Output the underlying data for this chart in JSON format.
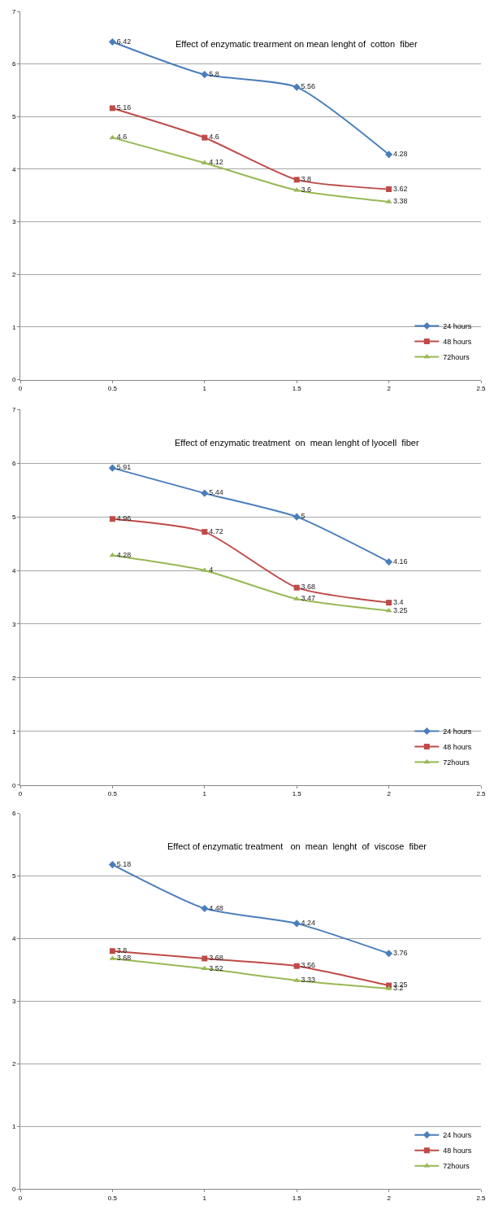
{
  "chart_data": [
    {
      "type": "line",
      "title": "Effect of enzymatic trearment on mean lenght of  cotton  fiber",
      "x": [
        0.5,
        1,
        1.5,
        2
      ],
      "xlim": [
        0,
        2.5
      ],
      "xticks": [
        0,
        0.5,
        1,
        1.5,
        2,
        2.5
      ],
      "ylim": [
        0,
        7
      ],
      "yticks": [
        0,
        1,
        2,
        3,
        4,
        5,
        6,
        7
      ],
      "grid": "y",
      "legend": "bottom right",
      "data_labels": true,
      "series": [
        {
          "name": "24 hours",
          "color": "#4a7ebb",
          "marker": "diamond",
          "values": [
            6.42,
            5.8,
            5.56,
            4.28
          ]
        },
        {
          "name": "48 hours",
          "color": "#be4b48",
          "marker": "square",
          "values": [
            5.16,
            4.6,
            3.8,
            3.62
          ]
        },
        {
          "name": "72hours",
          "color": "#98b954",
          "marker": "triangle",
          "values": [
            4.6,
            4.12,
            3.6,
            3.38
          ]
        }
      ]
    },
    {
      "type": "line",
      "title": "Effect of enzymatic treatment  on  mean lenght of lyocell  fiber",
      "x": [
        0.5,
        1,
        1.5,
        2
      ],
      "xlim": [
        0,
        2.5
      ],
      "xticks": [
        0,
        0.5,
        1,
        1.5,
        2,
        2.5
      ],
      "ylim": [
        0,
        7
      ],
      "yticks": [
        0,
        1,
        2,
        3,
        4,
        5,
        6,
        7
      ],
      "grid": "y",
      "legend": "bottom right",
      "data_labels": true,
      "series": [
        {
          "name": "24 hours",
          "color": "#4a7ebb",
          "marker": "diamond",
          "values": [
            5.91,
            5.44,
            5,
            4.16
          ]
        },
        {
          "name": "48 hours",
          "color": "#be4b48",
          "marker": "square",
          "values": [
            4.96,
            4.72,
            3.68,
            3.4
          ]
        },
        {
          "name": "72hours",
          "color": "#98b954",
          "marker": "triangle",
          "values": [
            4.28,
            4,
            3.47,
            3.25
          ]
        }
      ]
    },
    {
      "type": "line",
      "title": "Effect of enzymatic treatment   on  mean  lenght  of  viscose  fiber",
      "x": [
        0.5,
        1,
        1.5,
        2
      ],
      "xlim": [
        0,
        2.5
      ],
      "xticks": [
        0,
        0.5,
        1,
        1.5,
        2,
        2.5
      ],
      "ylim": [
        0,
        6
      ],
      "yticks": [
        0,
        1,
        2,
        3,
        4,
        5,
        6
      ],
      "grid": "y",
      "legend": "bottom right",
      "data_labels": true,
      "series": [
        {
          "name": "24 hours",
          "color": "#4a7ebb",
          "marker": "diamond",
          "values": [
            5.18,
            4.48,
            4.24,
            3.76
          ]
        },
        {
          "name": "48 hours",
          "color": "#be4b48",
          "marker": "square",
          "values": [
            3.8,
            3.68,
            3.56,
            3.25
          ]
        },
        {
          "name": "72hours",
          "color": "#98b954",
          "marker": "triangle",
          "values": [
            3.68,
            3.52,
            3.33,
            3.2
          ]
        }
      ]
    }
  ]
}
